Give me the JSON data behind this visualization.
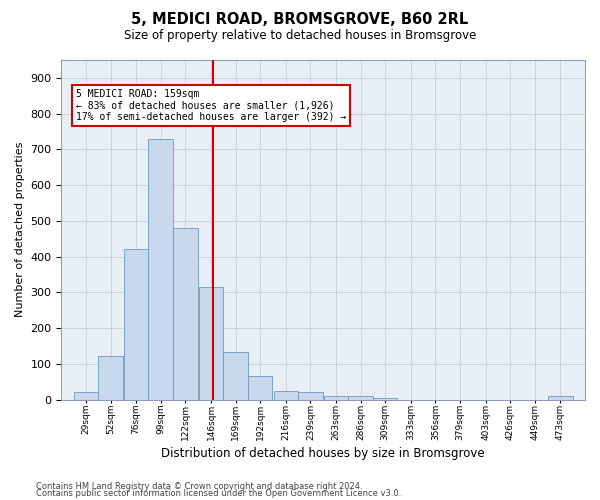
{
  "title": "5, MEDICI ROAD, BROMSGROVE, B60 2RL",
  "subtitle": "Size of property relative to detached houses in Bromsgrove",
  "xlabel": "Distribution of detached houses by size in Bromsgrove",
  "ylabel": "Number of detached properties",
  "bar_color": "#c8d8ed",
  "bar_edge_color": "#7099bb",
  "bg_axes": "#e8eef6",
  "bg_fig": "#ffffff",
  "grid_color": "#c5cdd8",
  "vline_color": "#cc0000",
  "vline_x": 159,
  "annotation_line1": "5 MEDICI ROAD: 159sqm",
  "annotation_line2": "← 83% of detached houses are smaller (1,926)",
  "annotation_line3": "17% of semi-detached houses are larger (392) →",
  "bin_edges": [
    29,
    52,
    76,
    99,
    122,
    146,
    169,
    192,
    216,
    239,
    263,
    286,
    309,
    333,
    356,
    379,
    403,
    426,
    449,
    473,
    496
  ],
  "counts": [
    20,
    122,
    420,
    730,
    480,
    315,
    133,
    65,
    25,
    20,
    10,
    10,
    5,
    0,
    0,
    0,
    0,
    0,
    0,
    10
  ],
  "ylim": [
    0,
    950
  ],
  "yticks": [
    0,
    100,
    200,
    300,
    400,
    500,
    600,
    700,
    800,
    900
  ],
  "footnote1": "Contains HM Land Registry data © Crown copyright and database right 2024.",
  "footnote2": "Contains public sector information licensed under the Open Government Licence v3.0."
}
